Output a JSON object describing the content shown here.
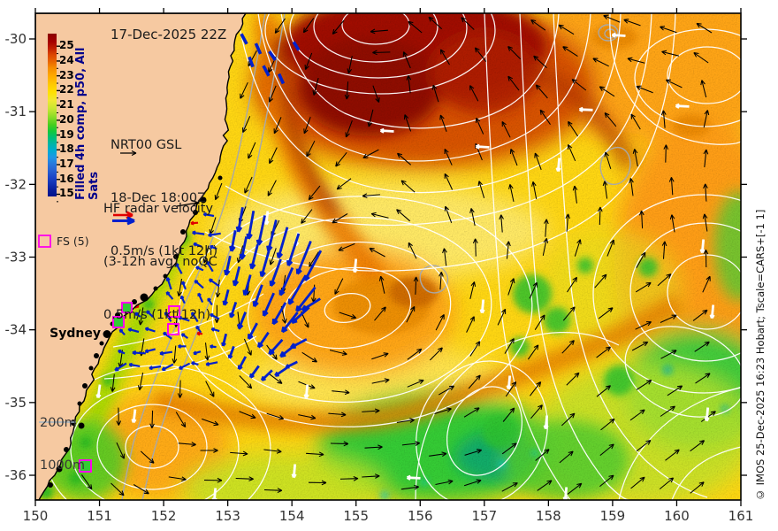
{
  "title": "17-Dec-2025 22Z",
  "colorbar": {
    "label": "Filled 4h comp, p50, All Sats",
    "ticks": [
      25,
      24,
      23,
      22,
      21,
      20,
      19,
      18,
      17,
      16,
      15
    ],
    "gradient_stops": [
      [
        "0",
        "#8B0000"
      ],
      [
        "0.05",
        "#A50000"
      ],
      [
        "0.09",
        "#C01E00"
      ],
      [
        "0.13",
        "#DC4600"
      ],
      [
        "0.17",
        "#E86400"
      ],
      [
        "0.21",
        "#F58C00"
      ],
      [
        "0.26",
        "#FFAA00"
      ],
      [
        "0.31",
        "#FFC800"
      ],
      [
        "0.36",
        "#FFE000"
      ],
      [
        "0.41",
        "#F0E832"
      ],
      [
        "0.46",
        "#C8E632"
      ],
      [
        "0.51",
        "#8CDC28"
      ],
      [
        "0.56",
        "#46CD1E"
      ],
      [
        "0.60",
        "#14C83C"
      ],
      [
        "0.64",
        "#00BE78"
      ],
      [
        "0.68",
        "#00B4AA"
      ],
      [
        "0.72",
        "#00AAD2"
      ],
      [
        "0.76",
        "#1E96E6"
      ],
      [
        "0.80",
        "#2878DC"
      ],
      [
        "0.84",
        "#2860D2"
      ],
      [
        "0.88",
        "#1E46C8"
      ],
      [
        "0.92",
        "#1432B4"
      ],
      [
        "0.96",
        "#0A1E9B"
      ],
      [
        "1",
        "#00128C"
      ]
    ]
  },
  "legends": {
    "model": {
      "name": "NRT00 GSL",
      "time": "18-Dec 18:00Z",
      "scale": "0.5m/s (1kt 12h)"
    },
    "hf": {
      "line1": "HF radar velocity",
      "line2": "(3-12h avg) noQC",
      "line3": "0.5m/s (1kt 12h)"
    },
    "fs": {
      "label": "FS (5)"
    },
    "isobath": {
      "d200": "200m",
      "d1000": "1000m"
    }
  },
  "city": {
    "name": "Sydney"
  },
  "credit": "© IMOS 25-Dec-2025 16:23 Hobart; Tscale=CARS+[-1 1]",
  "axes": {
    "x_ticks": [
      150,
      151,
      152,
      153,
      154,
      155,
      156,
      157,
      158,
      159,
      160,
      161
    ],
    "y_ticks": [
      -30,
      -31,
      -32,
      -33,
      -34,
      -35,
      -36
    ]
  },
  "colors": {
    "land": "#F6C9A1",
    "coast": "#000000",
    "hf_vector": "#0020CC",
    "hf_vector_red": "#E00000",
    "fs_marker": "#FF00EE",
    "streamline": "#FFFFFF",
    "isobath_gray": "#A8A8A8",
    "isobath_sample": "#A0B6C6",
    "colorbar_label": "#00008B",
    "axis_text": "#333333",
    "sst_warm_core": "#A00A00",
    "sst_base": "#FFD713",
    "sst_cold_patch": "#2EC22E"
  }
}
